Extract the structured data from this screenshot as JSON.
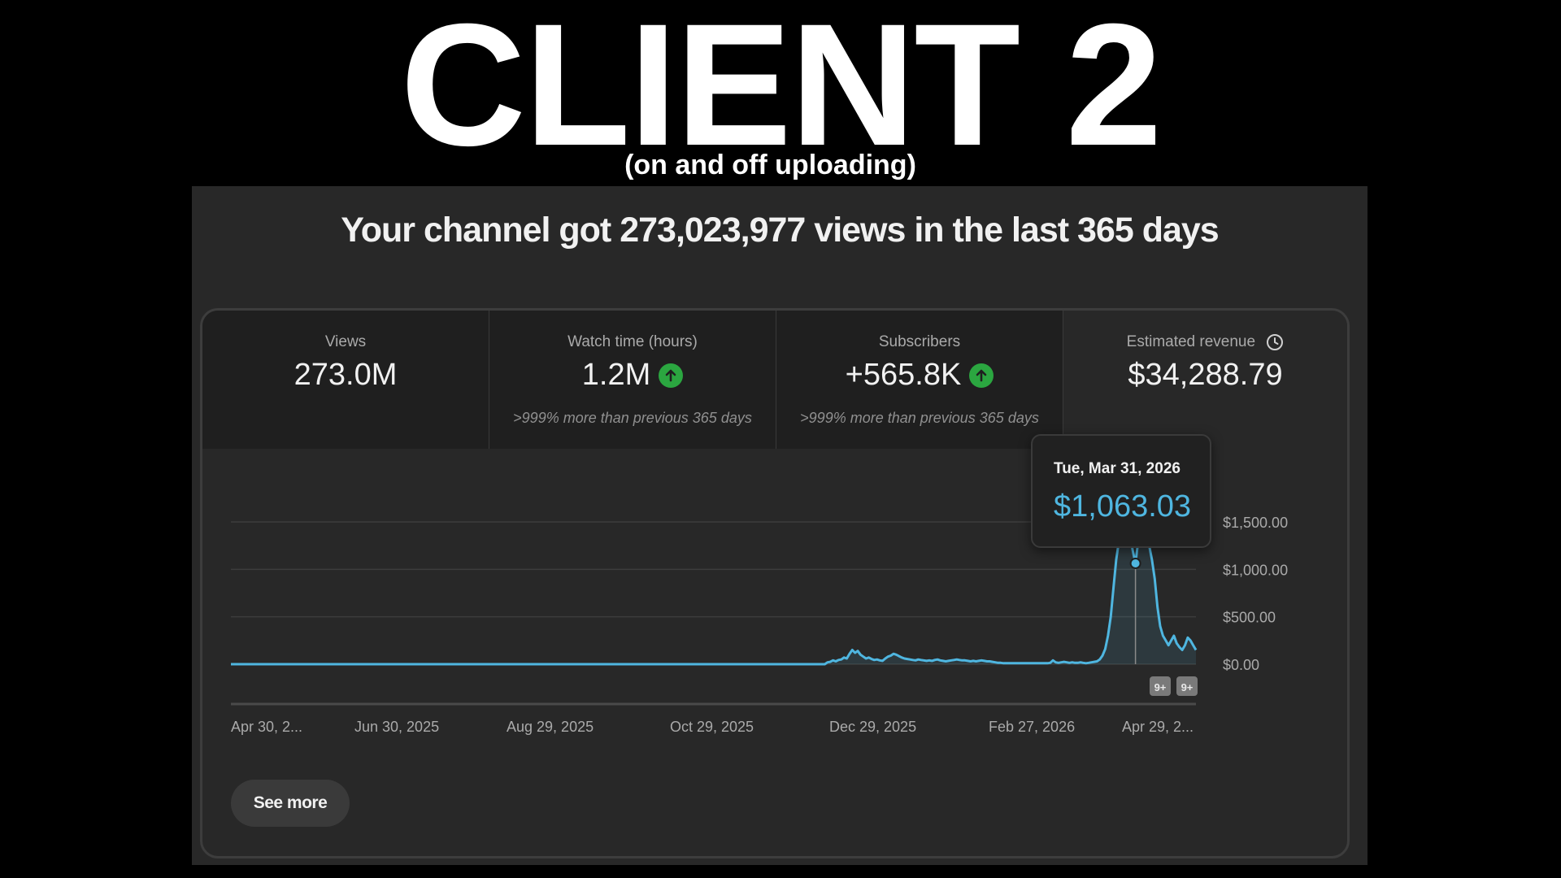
{
  "overlay": {
    "title": "CLIENT 2",
    "subtitle": "(on and off uploading)"
  },
  "headline": "Your channel got 273,023,977 views in the last 365 days",
  "metrics": [
    {
      "label": "Views",
      "value": "273.0M",
      "note": "",
      "trend": "none"
    },
    {
      "label": "Watch time (hours)",
      "value": "1.2M",
      "note": ">999% more than previous 365 days",
      "trend": "up"
    },
    {
      "label": "Subscribers",
      "value": "+565.8K",
      "note": ">999% more than previous 365 days",
      "trend": "up"
    },
    {
      "label": "Estimated revenue",
      "value": "$34,288.79",
      "note": "",
      "trend": "none",
      "icon": "clock-icon"
    }
  ],
  "tooltip": {
    "date": "Tue, Mar 31, 2026",
    "value": "$1,063.03"
  },
  "see_more_label": "See more",
  "event_badges": [
    "9+",
    "9+"
  ],
  "colors": {
    "line": "#4fb6e0",
    "up": "#2ba640",
    "background": "#282828"
  },
  "chart_data": {
    "type": "line",
    "x_tick_labels": [
      "Apr 30, 2...",
      "Jun 30, 2025",
      "Aug 29, 2025",
      "Oct 29, 2025",
      "Dec 29, 2025",
      "Feb 27, 2026",
      "Apr 29, 2..."
    ],
    "y_tick_labels": [
      "$1,500.00",
      "$1,000.00",
      "$500.00",
      "$0.00"
    ],
    "ylim": [
      0,
      1500
    ],
    "grid": true,
    "series": [
      {
        "values": [
          0,
          0,
          0,
          0,
          0,
          0,
          0,
          0,
          0,
          0,
          0,
          0,
          0,
          0,
          0,
          0,
          0,
          0,
          0,
          0,
          0,
          0,
          0,
          0,
          0,
          0,
          0,
          0,
          0,
          0,
          0,
          0,
          0,
          0,
          0,
          0,
          0,
          0,
          0,
          0,
          0,
          0,
          0,
          0,
          0,
          0,
          0,
          0,
          0,
          0,
          0,
          0,
          0,
          0,
          0,
          0,
          0,
          0,
          0,
          0,
          0,
          0,
          0,
          0,
          0,
          0,
          0,
          0,
          0,
          0,
          0,
          0,
          0,
          0,
          0,
          0,
          0,
          0,
          0,
          0,
          0,
          0,
          0,
          0,
          0,
          0,
          0,
          0,
          0,
          0,
          0,
          0,
          0,
          0,
          0,
          0,
          0,
          0,
          0,
          0,
          0,
          0,
          0,
          0,
          0,
          0,
          0,
          0,
          0,
          0,
          0,
          0,
          0,
          0,
          0,
          0,
          0,
          0,
          0,
          0,
          0,
          0,
          0,
          0,
          0,
          0,
          0,
          0,
          0,
          0,
          0,
          0,
          0,
          0,
          0,
          0,
          0,
          0,
          0,
          0,
          0,
          0,
          0,
          0,
          0,
          0,
          0,
          0,
          0,
          0,
          0,
          0,
          0,
          0,
          0,
          0,
          0,
          0,
          0,
          0,
          0,
          0,
          0,
          0,
          0,
          0,
          0,
          0,
          0,
          0,
          0,
          0,
          0,
          0,
          0,
          0,
          0,
          0,
          0,
          0,
          0,
          0,
          0,
          0,
          0,
          0,
          0,
          0,
          0,
          0,
          0,
          0,
          0,
          0,
          0,
          0,
          0,
          0,
          0,
          0,
          0,
          0,
          0,
          0,
          0,
          0,
          0,
          0,
          0,
          0,
          0,
          0,
          0,
          0,
          0,
          0,
          0,
          20,
          25,
          40,
          30,
          45,
          50,
          70,
          60,
          110,
          150,
          120,
          140,
          100,
          80,
          60,
          70,
          55,
          45,
          50,
          40,
          35,
          60,
          80,
          90,
          110,
          100,
          85,
          70,
          60,
          55,
          50,
          45,
          40,
          50,
          45,
          40,
          35,
          40,
          35,
          45,
          50,
          40,
          35,
          30,
          35,
          40,
          45,
          50,
          45,
          40,
          40,
          35,
          30,
          35,
          30,
          35,
          40,
          35,
          30,
          30,
          25,
          20,
          15,
          15,
          10,
          10,
          10,
          10,
          10,
          10,
          10,
          10,
          10,
          10,
          10,
          10,
          10,
          10,
          10,
          10,
          10,
          15,
          40,
          20,
          15,
          20,
          25,
          20,
          15,
          20,
          15,
          15,
          20,
          15,
          10,
          15,
          20,
          25,
          30,
          50,
          90,
          160,
          300,
          500,
          800,
          1100,
          1300,
          1250,
          1400,
          1500,
          1350,
          1200,
          1063,
          1300,
          1450,
          1500,
          1400,
          1250,
          1100,
          900,
          600,
          400,
          300,
          250,
          200,
          250,
          300,
          220,
          180,
          150,
          200,
          280,
          250,
          200,
          150
        ],
        "color": "#4fb6e0"
      }
    ],
    "highlight": {
      "date": "Tue, Mar 31, 2026",
      "value": 1063.03
    }
  }
}
